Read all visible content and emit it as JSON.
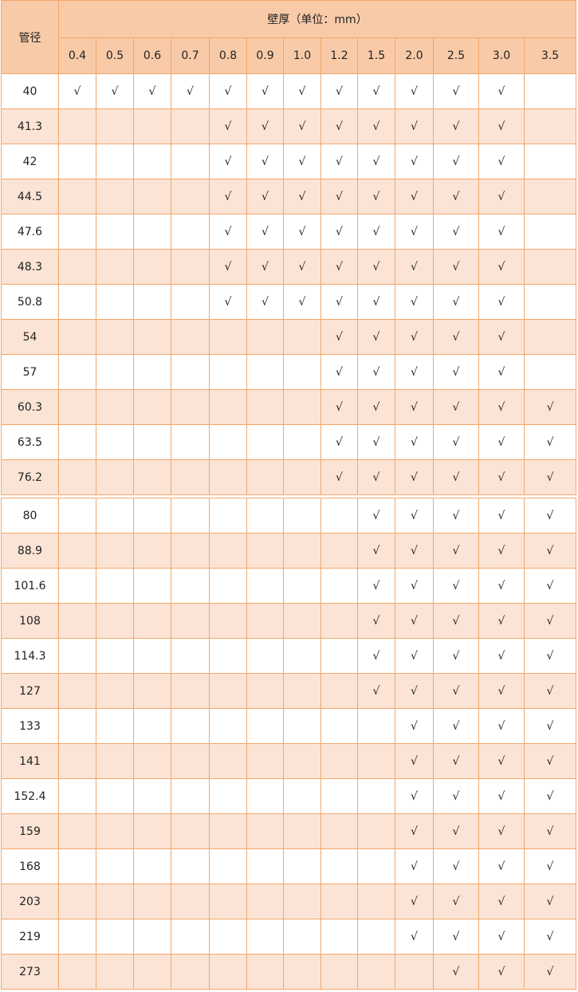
{
  "header": {
    "diameter_label": "管径",
    "thickness_label": "壁厚（单位：mm）",
    "thicknesses": [
      "0.4",
      "0.5",
      "0.6",
      "0.7",
      "0.8",
      "0.9",
      "1.0",
      "1.2",
      "1.5",
      "2.0",
      "2.5",
      "3.0",
      "3.5"
    ]
  },
  "check_mark": "√",
  "colors": {
    "header_bg": "#f8caa8",
    "alt_row_bg": "#fbe4d6",
    "border": "#f2a76a"
  },
  "tables": [
    {
      "rows": [
        {
          "diameter": "40",
          "from": "0.4",
          "to": "3.0"
        },
        {
          "diameter": "41.3",
          "from": "0.8",
          "to": "3.0"
        },
        {
          "diameter": "42",
          "from": "0.8",
          "to": "3.0"
        },
        {
          "diameter": "44.5",
          "from": "0.8",
          "to": "3.0"
        },
        {
          "diameter": "47.6",
          "from": "0.8",
          "to": "3.0"
        },
        {
          "diameter": "48.3",
          "from": "0.8",
          "to": "3.0"
        },
        {
          "diameter": "50.8",
          "from": "0.8",
          "to": "3.0"
        },
        {
          "diameter": "54",
          "from": "1.2",
          "to": "3.0"
        },
        {
          "diameter": "57",
          "from": "1.2",
          "to": "3.0"
        },
        {
          "diameter": "60.3",
          "from": "1.2",
          "to": "3.5"
        },
        {
          "diameter": "63.5",
          "from": "1.2",
          "to": "3.5"
        },
        {
          "diameter": "76.2",
          "from": "1.2",
          "to": "3.5"
        }
      ]
    },
    {
      "rows": [
        {
          "diameter": "80",
          "from": "1.5",
          "to": "3.5"
        },
        {
          "diameter": "88.9",
          "from": "1.5",
          "to": "3.5"
        },
        {
          "diameter": "101.6",
          "from": "1.5",
          "to": "3.5"
        },
        {
          "diameter": "108",
          "from": "1.5",
          "to": "3.5"
        },
        {
          "diameter": "114.3",
          "from": "1.5",
          "to": "3.5"
        },
        {
          "diameter": "127",
          "from": "1.5",
          "to": "3.5"
        },
        {
          "diameter": "133",
          "from": "2.0",
          "to": "3.5"
        },
        {
          "diameter": "141",
          "from": "2.0",
          "to": "3.5"
        },
        {
          "diameter": "152.4",
          "from": "2.0",
          "to": "3.5"
        },
        {
          "diameter": "159",
          "from": "2.0",
          "to": "3.5"
        },
        {
          "diameter": "168",
          "from": "2.0",
          "to": "3.5"
        },
        {
          "diameter": "203",
          "from": "2.0",
          "to": "3.5"
        },
        {
          "diameter": "219",
          "from": "2.0",
          "to": "3.5"
        },
        {
          "diameter": "273",
          "from": "2.5",
          "to": "3.5"
        }
      ]
    }
  ]
}
